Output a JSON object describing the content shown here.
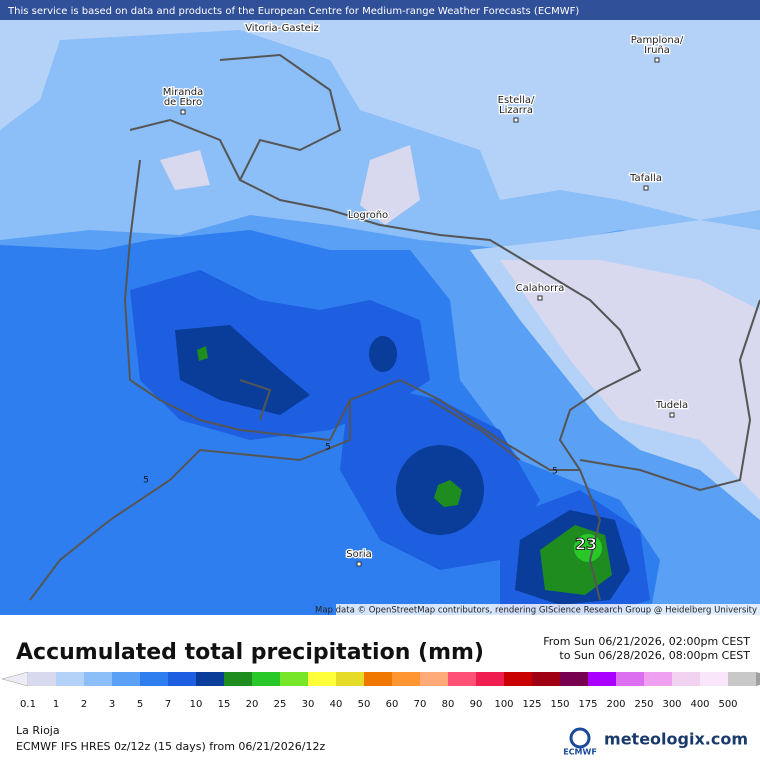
{
  "map": {
    "banner": "This service is based on data and products of the European Centre for Medium-range Weather Forecasts (ECMWF)",
    "cities": [
      {
        "lines": [
          "Vitoria-Gasteiz"
        ]
      },
      {
        "lines": [
          "Pamplona/",
          "Iruña"
        ]
      },
      {
        "lines": [
          "Miranda",
          "de Ebro"
        ]
      },
      {
        "lines": [
          "Estella/",
          "Lizarra"
        ]
      },
      {
        "lines": [
          "Tafalla"
        ]
      },
      {
        "lines": [
          "Logroño"
        ]
      },
      {
        "lines": [
          "Calahorra"
        ]
      },
      {
        "lines": [
          "Tudela"
        ]
      },
      {
        "lines": [
          "Soria"
        ]
      }
    ],
    "contour_labels": [
      "5",
      "5",
      "5",
      "23"
    ],
    "attribution": "Map data © OpenStreetMap contributors, rendering GIScience Research Group @ Heidelberg University"
  },
  "legend": {
    "title": "Accumulated total precipitation (mm)",
    "period_from": "From Sun 06/21/2026, 02:00pm CEST",
    "period_to": "to Sun 06/28/2026, 08:00pm CEST",
    "labels": [
      "0.1",
      "1",
      "2",
      "3",
      "5",
      "7",
      "10",
      "15",
      "20",
      "25",
      "30",
      "40",
      "50",
      "60",
      "70",
      "80",
      "90",
      "100",
      "125",
      "150",
      "175",
      "200",
      "250",
      "300",
      "400",
      "500"
    ],
    "colors": [
      "#ececf6",
      "#d8d8ee",
      "#b4d2f8",
      "#8cbef8",
      "#5aa0f5",
      "#2f7ef0",
      "#1d5fe0",
      "#0a3c9a",
      "#1e8c1e",
      "#28c828",
      "#78e628",
      "#ffff3c",
      "#e6dc28",
      "#f07800",
      "#ff9632",
      "#ffaa78",
      "#ff5078",
      "#f01e50",
      "#c80000",
      "#a00014",
      "#780050",
      "#aa00ff",
      "#dc6ef0",
      "#f0a0f0",
      "#f0d2f0",
      "#fae6fa",
      "#c8c8c8",
      "#a0a0a0"
    ]
  },
  "footer": {
    "region": "La Rioja",
    "model": "ECMWF IFS HRES 0z/12z (15 days) from 06/21/2026/12z",
    "ecmwf": "ECMWF",
    "brand": "meteologix.com"
  }
}
